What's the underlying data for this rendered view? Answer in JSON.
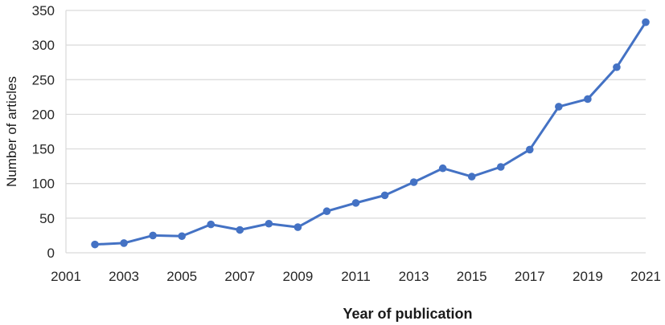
{
  "chart_data": {
    "type": "line",
    "title": "",
    "xlabel": "Year of publication",
    "ylabel": "Number of articles",
    "x": [
      2002,
      2003,
      2004,
      2005,
      2006,
      2007,
      2008,
      2009,
      2010,
      2011,
      2012,
      2013,
      2014,
      2015,
      2016,
      2017,
      2018,
      2019,
      2020,
      2021
    ],
    "series": [
      {
        "name": "Number of articles",
        "values": [
          12,
          14,
          25,
          24,
          41,
          33,
          42,
          37,
          60,
          72,
          83,
          102,
          122,
          110,
          124,
          149,
          211,
          222,
          268,
          333
        ]
      }
    ],
    "xlim": [
      2001,
      2021
    ],
    "ylim": [
      0,
      350
    ],
    "x_ticks": [
      2001,
      2003,
      2005,
      2007,
      2009,
      2011,
      2013,
      2015,
      2017,
      2019,
      2021
    ],
    "y_ticks": [
      0,
      50,
      100,
      150,
      200,
      250,
      300,
      350
    ],
    "grid": "horizontal",
    "legend": "none",
    "marker": "circle",
    "line_color": "#4472C4",
    "gridline_color": "#D9D9D9",
    "axis_line_color": "#D9D9D9",
    "tick_text_color": "#262626",
    "background_color": "#FFFFFF"
  }
}
